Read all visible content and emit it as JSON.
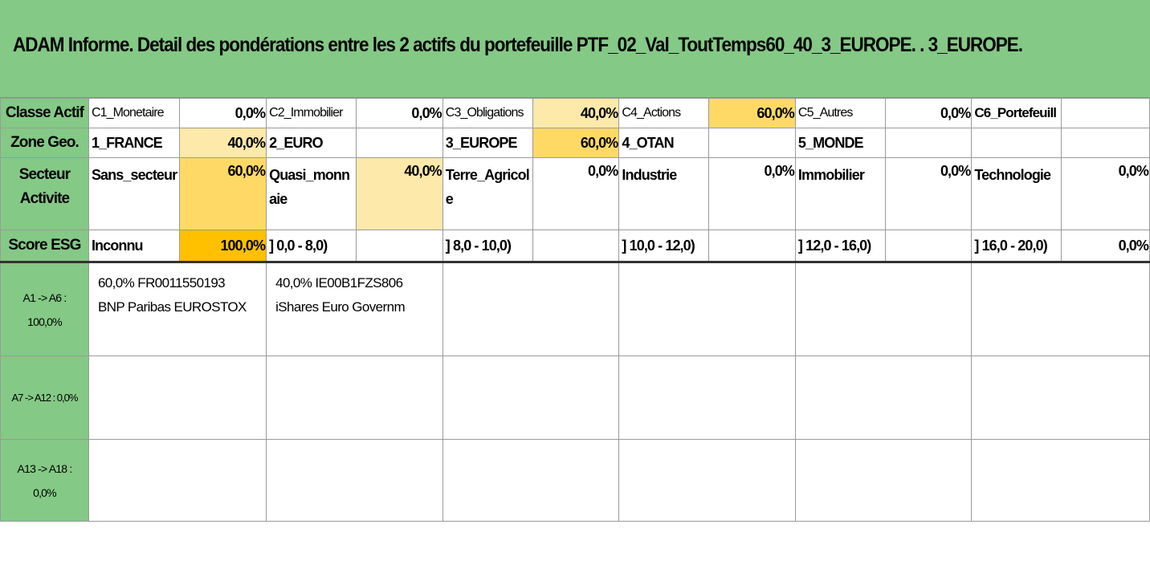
{
  "title": "ADAM Informe. Detail des pondérations entre les 2 actifs du portefeuille PTF_02_Val_ToutTemps60_40_3_EUROPE. . 3_EUROPE.",
  "colors": {
    "header_green": "#84c985",
    "light_yellow": "#fde9a9",
    "mid_yellow": "#ffd966",
    "dark_orange": "#ffc000"
  },
  "classe_actif": {
    "header": "Classe Actif",
    "cells": [
      {
        "label": "C1_Monetaire",
        "value": "0,0%"
      },
      {
        "label": "C2_Immobilier",
        "value": "0,0%"
      },
      {
        "label": "C3_Obligations",
        "value": "40,0%"
      },
      {
        "label": "C4_Actions",
        "value": "60,0%"
      },
      {
        "label": "C5_Autres",
        "value": "0,0%"
      },
      {
        "label": "C6_Portefeuill",
        "value": ""
      }
    ]
  },
  "zone_geo": {
    "header": "Zone Geo.",
    "cells": [
      {
        "label": "1_FRANCE",
        "value": "40,0%"
      },
      {
        "label": "2_EURO",
        "value": ""
      },
      {
        "label": "3_EUROPE",
        "value": "60,0%"
      },
      {
        "label": "4_OTAN",
        "value": ""
      },
      {
        "label": "5_MONDE",
        "value": ""
      },
      {
        "label": "",
        "value": ""
      }
    ]
  },
  "secteur_activite": {
    "header_line1": "Secteur",
    "header_line2": "Activite",
    "cells": [
      {
        "label": "Sans_secteur",
        "label2": "",
        "value": "60,0%"
      },
      {
        "label": "Quasi_monn",
        "label2": "aie",
        "value": "40,0%"
      },
      {
        "label": "Terre_Agricol",
        "label2": "e",
        "value": "0,0%"
      },
      {
        "label": "Industrie",
        "label2": "",
        "value": "0,0%"
      },
      {
        "label": "Immobilier",
        "label2": "",
        "value": "0,0%"
      },
      {
        "label": "Technologie",
        "label2": "",
        "value": "0,0%"
      }
    ]
  },
  "score_esg": {
    "header": "Score ESG",
    "cells": [
      {
        "label": "Inconnu",
        "value": "100,0%"
      },
      {
        "label": "] 0,0 - 8,0)",
        "value": ""
      },
      {
        "label": "] 8,0 - 10,0)",
        "value": ""
      },
      {
        "label": "] 10,0 - 12,0)",
        "value": ""
      },
      {
        "label": "] 12,0 - 16,0)",
        "value": ""
      },
      {
        "label": "] 16,0 - 20,0)",
        "value": "0,0%"
      }
    ]
  },
  "assets": {
    "group1": {
      "line1": "A1 -> A6 :",
      "line2": "100,0%",
      "items": [
        {
          "line1": "60,0% FR0011550193",
          "line2": "BNP Paribas EUROSTOX"
        },
        {
          "line1": "40,0% IE00B1FZS806",
          "line2": "iShares Euro Governm"
        }
      ]
    },
    "group2": {
      "line1": "A7 -> A12 : 0,0%"
    },
    "group3": {
      "line1": "A13 -> A18 :",
      "line2": "0,0%"
    }
  }
}
